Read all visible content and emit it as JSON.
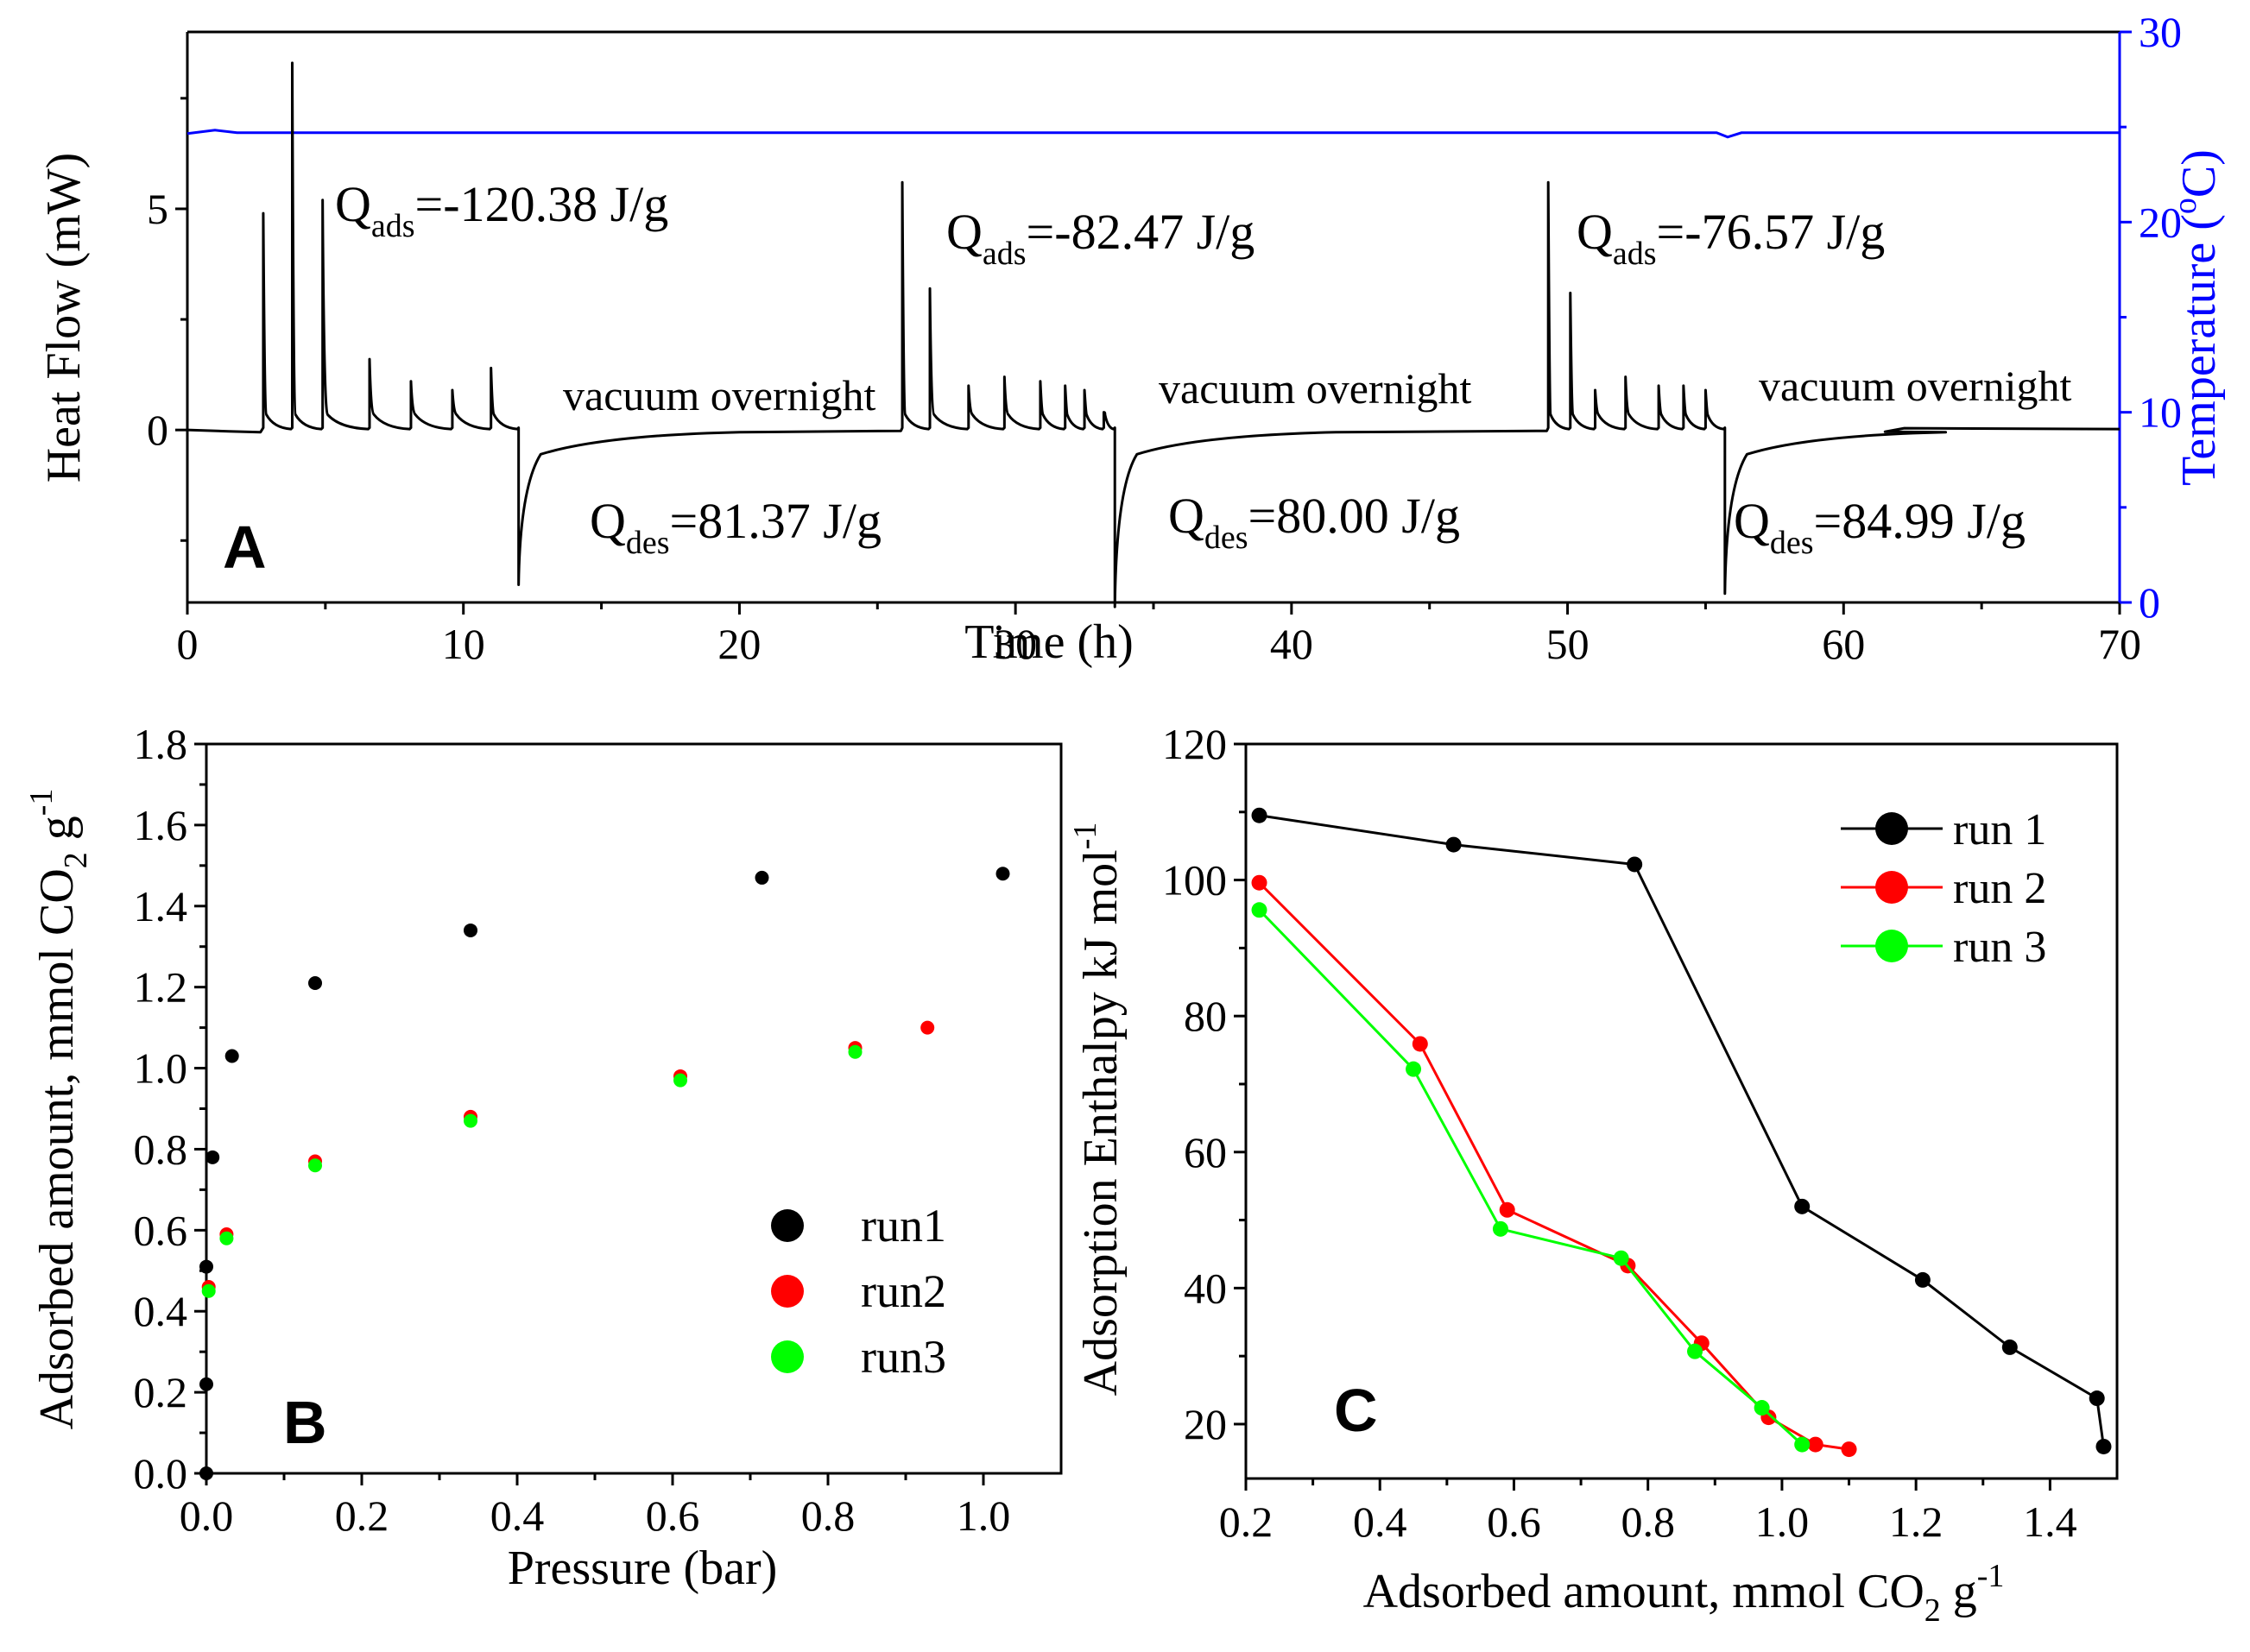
{
  "chart_data": [
    {
      "id": "A",
      "type": "line",
      "panel_label": "A",
      "xlabel": "Time (h)",
      "ylabel": "Heat Flow (mW)",
      "y2label": "Temperature (°C)",
      "y2label_parts": [
        "Temperature (",
        "o",
        "C)"
      ],
      "xlim": [
        0,
        70
      ],
      "ylim": [
        -3.9,
        9.0
      ],
      "y2lim": [
        0,
        30
      ],
      "xticks": [
        "0",
        "10",
        "20",
        "30",
        "40",
        "50",
        "60",
        "70"
      ],
      "xtick_values": [
        0,
        10,
        20,
        30,
        40,
        50,
        60,
        70
      ],
      "yticks": [
        "0",
        "5"
      ],
      "ytick_values": [
        0,
        5
      ],
      "y2ticks": [
        "0",
        "10",
        "20",
        "30"
      ],
      "y2tick_values": [
        0,
        10,
        20,
        30
      ],
      "colors": {
        "heat": "#000000",
        "temp": "#0000ff"
      },
      "temperature_c": 24.7,
      "series": [
        {
          "name": "Heat Flow",
          "baseline": 0.0,
          "adsorption_peaks": [
            {
              "t": 2.75,
              "h": 4.9
            },
            {
              "t": 3.8,
              "h": 8.3
            },
            {
              "t": 4.9,
              "h": 5.2
            },
            {
              "t": 6.6,
              "h": 1.6
            },
            {
              "t": 8.1,
              "h": 1.1
            },
            {
              "t": 9.6,
              "h": 0.9
            },
            {
              "t": 11.0,
              "h": 1.4
            },
            {
              "t": 25.9,
              "h": 5.6
            },
            {
              "t": 26.9,
              "h": 3.2
            },
            {
              "t": 28.3,
              "h": 1.0
            },
            {
              "t": 29.6,
              "h": 1.2
            },
            {
              "t": 30.9,
              "h": 1.1
            },
            {
              "t": 31.8,
              "h": 1.0
            },
            {
              "t": 32.5,
              "h": 0.9
            },
            {
              "t": 33.2,
              "h": 0.4
            },
            {
              "t": 49.3,
              "h": 5.6
            },
            {
              "t": 50.1,
              "h": 3.1
            },
            {
              "t": 51.0,
              "h": 0.9
            },
            {
              "t": 52.1,
              "h": 1.2
            },
            {
              "t": 53.3,
              "h": 1.0
            },
            {
              "t": 54.2,
              "h": 1.0
            },
            {
              "t": 55.0,
              "h": 0.9
            }
          ],
          "desorption_dips": [
            {
              "t": 12.0,
              "d": -3.5
            },
            {
              "t": 33.6,
              "d": -4.0
            },
            {
              "t": 55.7,
              "d": -3.7
            }
          ]
        }
      ],
      "annotations": [
        {
          "sym": "Q",
          "sub": "ads",
          "val": "=-120.38 J/g"
        },
        {
          "sym": "Q",
          "sub": "ads",
          "val": "=-82.47 J/g"
        },
        {
          "sym": "Q",
          "sub": "ads",
          "val": "=-76.57 J/g"
        },
        {
          "sym": "Q",
          "sub": "des",
          "val": "=81.37 J/g"
        },
        {
          "sym": "Q",
          "sub": "des",
          "val": "=80.00 J/g"
        },
        {
          "sym": "Q",
          "sub": "des",
          "val": "=84.99 J/g"
        },
        {
          "text": "vacuum overnight"
        },
        {
          "text": "vacuum overnight"
        },
        {
          "text": "vacuum overnight"
        }
      ]
    },
    {
      "id": "B",
      "type": "scatter",
      "panel_label": "B",
      "xlabel": "Pressure (bar)",
      "ylabel_parts": [
        "Adsorbed amount, mmol CO",
        "2",
        " g",
        "-1"
      ],
      "xlim": [
        0,
        1.1
      ],
      "ylim": [
        0,
        1.8
      ],
      "xticks": [
        "0.0",
        "0.2",
        "0.4",
        "0.6",
        "0.8",
        "1.0"
      ],
      "xtick_values": [
        0,
        0.2,
        0.4,
        0.6,
        0.8,
        1.0
      ],
      "yticks": [
        "0.0",
        "0.2",
        "0.4",
        "0.6",
        "0.8",
        "1.0",
        "1.2",
        "1.4",
        "1.6",
        "1.8"
      ],
      "ytick_values": [
        0,
        0.2,
        0.4,
        0.6,
        0.8,
        1.0,
        1.2,
        1.4,
        1.6,
        1.8
      ],
      "legend_position": "lower-right",
      "series": [
        {
          "name": "run1",
          "color": "#000000",
          "x": [
            0.0,
            0.0,
            0.0,
            0.008,
            0.033,
            0.14,
            0.34,
            0.715,
            1.025
          ],
          "y": [
            0.0,
            0.22,
            0.51,
            0.78,
            1.03,
            1.21,
            1.34,
            1.47,
            1.48
          ]
        },
        {
          "name": "run2",
          "color": "#ff0000",
          "x": [
            0.003,
            0.026,
            0.14,
            0.34,
            0.61,
            0.835,
            0.928
          ],
          "y": [
            0.46,
            0.59,
            0.77,
            0.88,
            0.98,
            1.05,
            1.1
          ]
        },
        {
          "name": "run3",
          "color": "#00ff00",
          "x": [
            0.003,
            0.026,
            0.14,
            0.34,
            0.61,
            0.835
          ],
          "y": [
            0.45,
            0.58,
            0.76,
            0.87,
            0.97,
            1.04
          ]
        }
      ]
    },
    {
      "id": "C",
      "type": "line",
      "panel_label": "C",
      "xlabel_parts": [
        "Adsorbed amount, mmol CO",
        "2",
        " g",
        "-1"
      ],
      "ylabel_parts": [
        "Adsorption Enthalpy kJ mol",
        "-1"
      ],
      "xlim": [
        0.2,
        1.5
      ],
      "ylim": [
        12,
        120
      ],
      "xticks": [
        "0.2",
        "0.4",
        "0.6",
        "0.8",
        "1.0",
        "1.2",
        "1.4"
      ],
      "xtick_values": [
        0.2,
        0.4,
        0.6,
        0.8,
        1.0,
        1.2,
        1.4
      ],
      "yticks": [
        "20",
        "40",
        "60",
        "80",
        "100",
        "120"
      ],
      "ytick_values": [
        20,
        40,
        60,
        80,
        100,
        120
      ],
      "legend_position": "top-right",
      "series": [
        {
          "name": "run 1",
          "color": "#000000",
          "x": [
            0.22,
            0.51,
            0.78,
            1.03,
            1.21,
            1.34,
            1.47,
            1.48
          ],
          "y": [
            109.5,
            105.2,
            102.3,
            52.0,
            41.2,
            31.3,
            23.8,
            16.7
          ]
        },
        {
          "name": "run 2",
          "color": "#ff0000",
          "x": [
            0.22,
            0.46,
            0.59,
            0.77,
            0.88,
            0.98,
            1.05,
            1.1
          ],
          "y": [
            99.6,
            75.9,
            51.5,
            43.3,
            31.9,
            21.0,
            17.0,
            16.3
          ]
        },
        {
          "name": "run 3",
          "color": "#00ff00",
          "x": [
            0.22,
            0.45,
            0.58,
            0.76,
            0.87,
            0.97,
            1.03
          ],
          "y": [
            95.6,
            72.2,
            48.7,
            44.4,
            30.7,
            22.4,
            17.0
          ]
        }
      ]
    }
  ]
}
